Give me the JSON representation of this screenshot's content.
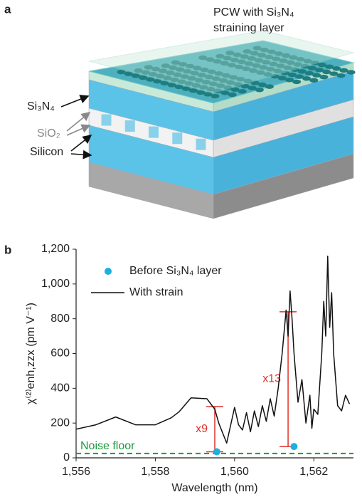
{
  "panel_a": {
    "label": "a",
    "title": [
      "PCW with Si₃N₄",
      "straining layer"
    ],
    "layer_labels": [
      "Si₃N₄",
      "SiO₂",
      "Silicon"
    ]
  },
  "chart_data": {
    "type": "line",
    "panel_label": "b",
    "xlabel": "Wavelength (nm)",
    "ylabel": "χ⁽²⁾enh,zzx (pm V⁻¹)",
    "xlim": [
      1556,
      1563
    ],
    "xticks": [
      {
        "value": 1556,
        "label": "1,556"
      },
      {
        "value": 1558,
        "label": "1,558"
      },
      {
        "value": 1560,
        "label": "1,560"
      },
      {
        "value": 1562,
        "label": "1,562"
      }
    ],
    "ylim": [
      0,
      1200
    ],
    "yticks": [
      0,
      200,
      400,
      600,
      800,
      {
        "value": 1000,
        "label": "1,000"
      },
      {
        "value": 1200,
        "label": "1,200"
      }
    ],
    "series": [
      {
        "name": "Before Si₃N₄ layer",
        "type": "scatter",
        "color": "#1ab0e0",
        "x": [
          1559.55,
          1561.5
        ],
        "values": [
          35,
          65
        ]
      },
      {
        "name": "With strain",
        "type": "line",
        "color": "#111111",
        "x": [
          1556,
          1556.5,
          1557,
          1557.5,
          1558,
          1558.4,
          1558.6,
          1558.9,
          1559.3,
          1559.5,
          1559.6,
          1559.8,
          1560.0,
          1560.1,
          1560.2,
          1560.3,
          1560.4,
          1560.5,
          1560.6,
          1560.7,
          1560.8,
          1560.9,
          1561.0,
          1561.1,
          1561.2,
          1561.3,
          1561.35,
          1561.4,
          1561.45,
          1561.5,
          1561.6,
          1561.7,
          1561.8,
          1561.9,
          1561.95,
          1562.0,
          1562.1,
          1562.2,
          1562.25,
          1562.3,
          1562.35,
          1562.4,
          1562.45,
          1562.5,
          1562.6,
          1562.7,
          1562.8,
          1562.9
        ],
        "values": [
          165,
          190,
          235,
          190,
          190,
          230,
          265,
          345,
          340,
          280,
          200,
          85,
          290,
          190,
          160,
          260,
          150,
          270,
          180,
          300,
          210,
          340,
          240,
          400,
          600,
          850,
          700,
          960,
          800,
          600,
          320,
          450,
          200,
          360,
          170,
          280,
          250,
          600,
          900,
          700,
          1160,
          750,
          950,
          600,
          300,
          270,
          360,
          310
        ]
      }
    ],
    "reference_lines": [
      {
        "label": "Noise floor",
        "value": 25,
        "color": "#1a9a3a"
      }
    ],
    "annotations": [
      {
        "label": "x9",
        "x": 1559.5,
        "y_low": 35,
        "y_high": 295,
        "color": "#e0302a"
      },
      {
        "label": "x13",
        "x": 1561.35,
        "y_low": 65,
        "y_high": 840,
        "color": "#e0302a"
      }
    ],
    "legend": "upper left"
  }
}
